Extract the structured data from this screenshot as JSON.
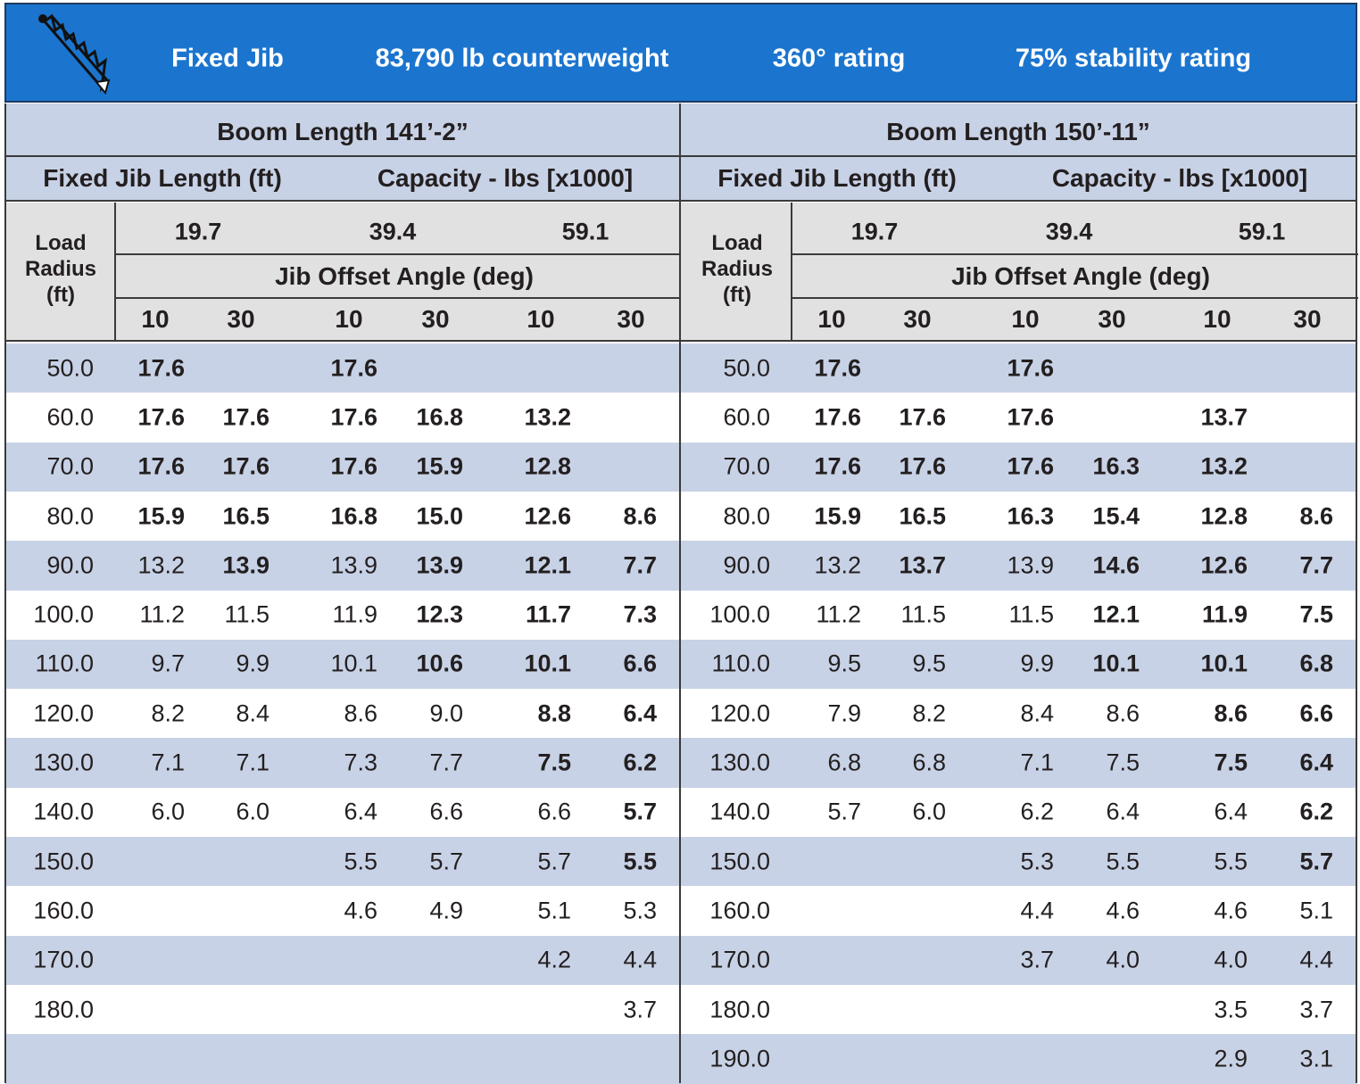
{
  "header": {
    "items": [
      "Fixed Jib",
      "83,790 lb counterweight",
      "360° rating",
      "75% stability rating"
    ]
  },
  "panels": [
    {
      "boom_length": "Boom Length 141’-2”",
      "jib_length_label": "Fixed Jib Length (ft)",
      "capacity_label": "Capacity - lbs [x1000]",
      "radius_label": "Load Radius (ft)",
      "jib_lengths": [
        "19.7",
        "39.4",
        "59.1"
      ],
      "offset_label": "Jib Offset Angle (deg)",
      "offsets": [
        "10",
        "30"
      ],
      "rows": [
        {
          "radius": "50.0",
          "cells": [
            {
              "text": "17.6",
              "bold": true
            },
            null,
            {
              "text": "17.6",
              "bold": true
            },
            null,
            null,
            null
          ]
        },
        {
          "radius": "60.0",
          "cells": [
            {
              "text": "17.6",
              "bold": true
            },
            {
              "text": "17.6",
              "bold": true
            },
            {
              "text": "17.6",
              "bold": true
            },
            {
              "text": "16.8",
              "bold": true
            },
            {
              "text": "13.2",
              "bold": true
            },
            null
          ]
        },
        {
          "radius": "70.0",
          "cells": [
            {
              "text": "17.6",
              "bold": true
            },
            {
              "text": "17.6",
              "bold": true
            },
            {
              "text": "17.6",
              "bold": true
            },
            {
              "text": "15.9",
              "bold": true
            },
            {
              "text": "12.8",
              "bold": true
            },
            null
          ]
        },
        {
          "radius": "80.0",
          "cells": [
            {
              "text": "15.9",
              "bold": true
            },
            {
              "text": "16.5",
              "bold": true
            },
            {
              "text": "16.8",
              "bold": true
            },
            {
              "text": "15.0",
              "bold": true
            },
            {
              "text": "12.6",
              "bold": true
            },
            {
              "text": "8.6",
              "bold": true
            }
          ]
        },
        {
          "radius": "90.0",
          "cells": [
            {
              "text": "13.2",
              "bold": false
            },
            {
              "text": "13.9",
              "bold": true
            },
            {
              "text": "13.9",
              "bold": false
            },
            {
              "text": "13.9",
              "bold": true
            },
            {
              "text": "12.1",
              "bold": true
            },
            {
              "text": "7.7",
              "bold": true
            }
          ]
        },
        {
          "radius": "100.0",
          "cells": [
            {
              "text": "11.2",
              "bold": false
            },
            {
              "text": "11.5",
              "bold": false
            },
            {
              "text": "11.9",
              "bold": false
            },
            {
              "text": "12.3",
              "bold": true
            },
            {
              "text": "11.7",
              "bold": true
            },
            {
              "text": "7.3",
              "bold": true
            }
          ]
        },
        {
          "radius": "110.0",
          "cells": [
            {
              "text": "9.7",
              "bold": false
            },
            {
              "text": "9.9",
              "bold": false
            },
            {
              "text": "10.1",
              "bold": false
            },
            {
              "text": "10.6",
              "bold": true
            },
            {
              "text": "10.1",
              "bold": true
            },
            {
              "text": "6.6",
              "bold": true
            }
          ]
        },
        {
          "radius": "120.0",
          "cells": [
            {
              "text": "8.2",
              "bold": false
            },
            {
              "text": "8.4",
              "bold": false
            },
            {
              "text": "8.6",
              "bold": false
            },
            {
              "text": "9.0",
              "bold": false
            },
            {
              "text": "8.8",
              "bold": true
            },
            {
              "text": "6.4",
              "bold": true
            }
          ]
        },
        {
          "radius": "130.0",
          "cells": [
            {
              "text": "7.1",
              "bold": false
            },
            {
              "text": "7.1",
              "bold": false
            },
            {
              "text": "7.3",
              "bold": false
            },
            {
              "text": "7.7",
              "bold": false
            },
            {
              "text": "7.5",
              "bold": true
            },
            {
              "text": "6.2",
              "bold": true
            }
          ]
        },
        {
          "radius": "140.0",
          "cells": [
            {
              "text": "6.0",
              "bold": false
            },
            {
              "text": "6.0",
              "bold": false
            },
            {
              "text": "6.4",
              "bold": false
            },
            {
              "text": "6.6",
              "bold": false
            },
            {
              "text": "6.6",
              "bold": false
            },
            {
              "text": "5.7",
              "bold": true
            }
          ]
        },
        {
          "radius": "150.0",
          "cells": [
            null,
            null,
            {
              "text": "5.5",
              "bold": false
            },
            {
              "text": "5.7",
              "bold": false
            },
            {
              "text": "5.7",
              "bold": false
            },
            {
              "text": "5.5",
              "bold": true
            }
          ]
        },
        {
          "radius": "160.0",
          "cells": [
            null,
            null,
            {
              "text": "4.6",
              "bold": false
            },
            {
              "text": "4.9",
              "bold": false
            },
            {
              "text": "5.1",
              "bold": false
            },
            {
              "text": "5.3",
              "bold": false
            }
          ]
        },
        {
          "radius": "170.0",
          "cells": [
            null,
            null,
            null,
            null,
            {
              "text": "4.2",
              "bold": false
            },
            {
              "text": "4.4",
              "bold": false
            }
          ]
        },
        {
          "radius": "180.0",
          "cells": [
            null,
            null,
            null,
            null,
            null,
            {
              "text": "3.7",
              "bold": false
            }
          ]
        },
        {
          "radius": null,
          "cells": [
            null,
            null,
            null,
            null,
            null,
            null
          ]
        }
      ]
    },
    {
      "boom_length": "Boom Length 150’-11”",
      "jib_length_label": "Fixed Jib Length (ft)",
      "capacity_label": "Capacity - lbs [x1000]",
      "radius_label": "Load Radius (ft)",
      "jib_lengths": [
        "19.7",
        "39.4",
        "59.1"
      ],
      "offset_label": "Jib Offset Angle (deg)",
      "offsets": [
        "10",
        "30"
      ],
      "rows": [
        {
          "radius": "50.0",
          "cells": [
            {
              "text": "17.6",
              "bold": true
            },
            null,
            {
              "text": "17.6",
              "bold": true
            },
            null,
            null,
            null
          ]
        },
        {
          "radius": "60.0",
          "cells": [
            {
              "text": "17.6",
              "bold": true
            },
            {
              "text": "17.6",
              "bold": true
            },
            {
              "text": "17.6",
              "bold": true
            },
            null,
            {
              "text": "13.7",
              "bold": true
            },
            null
          ]
        },
        {
          "radius": "70.0",
          "cells": [
            {
              "text": "17.6",
              "bold": true
            },
            {
              "text": "17.6",
              "bold": true
            },
            {
              "text": "17.6",
              "bold": true
            },
            {
              "text": "16.3",
              "bold": true
            },
            {
              "text": "13.2",
              "bold": true
            },
            null
          ]
        },
        {
          "radius": "80.0",
          "cells": [
            {
              "text": "15.9",
              "bold": true
            },
            {
              "text": "16.5",
              "bold": true
            },
            {
              "text": "16.3",
              "bold": true
            },
            {
              "text": "15.4",
              "bold": true
            },
            {
              "text": "12.8",
              "bold": true
            },
            {
              "text": "8.6",
              "bold": true
            }
          ]
        },
        {
          "radius": "90.0",
          "cells": [
            {
              "text": "13.2",
              "bold": false
            },
            {
              "text": "13.7",
              "bold": true
            },
            {
              "text": "13.9",
              "bold": false
            },
            {
              "text": "14.6",
              "bold": true
            },
            {
              "text": "12.6",
              "bold": true
            },
            {
              "text": "7.7",
              "bold": true
            }
          ]
        },
        {
          "radius": "100.0",
          "cells": [
            {
              "text": "11.2",
              "bold": false
            },
            {
              "text": "11.5",
              "bold": false
            },
            {
              "text": "11.5",
              "bold": false
            },
            {
              "text": "12.1",
              "bold": true
            },
            {
              "text": "11.9",
              "bold": true
            },
            {
              "text": "7.5",
              "bold": true
            }
          ]
        },
        {
          "radius": "110.0",
          "cells": [
            {
              "text": "9.5",
              "bold": false
            },
            {
              "text": "9.5",
              "bold": false
            },
            {
              "text": "9.9",
              "bold": false
            },
            {
              "text": "10.1",
              "bold": true
            },
            {
              "text": "10.1",
              "bold": true
            },
            {
              "text": "6.8",
              "bold": true
            }
          ]
        },
        {
          "radius": "120.0",
          "cells": [
            {
              "text": "7.9",
              "bold": false
            },
            {
              "text": "8.2",
              "bold": false
            },
            {
              "text": "8.4",
              "bold": false
            },
            {
              "text": "8.6",
              "bold": false
            },
            {
              "text": "8.6",
              "bold": true
            },
            {
              "text": "6.6",
              "bold": true
            }
          ]
        },
        {
          "radius": "130.0",
          "cells": [
            {
              "text": "6.8",
              "bold": false
            },
            {
              "text": "6.8",
              "bold": false
            },
            {
              "text": "7.1",
              "bold": false
            },
            {
              "text": "7.5",
              "bold": false
            },
            {
              "text": "7.5",
              "bold": true
            },
            {
              "text": "6.4",
              "bold": true
            }
          ]
        },
        {
          "radius": "140.0",
          "cells": [
            {
              "text": "5.7",
              "bold": false
            },
            {
              "text": "6.0",
              "bold": false
            },
            {
              "text": "6.2",
              "bold": false
            },
            {
              "text": "6.4",
              "bold": false
            },
            {
              "text": "6.4",
              "bold": false
            },
            {
              "text": "6.2",
              "bold": true
            }
          ]
        },
        {
          "radius": "150.0",
          "cells": [
            null,
            null,
            {
              "text": "5.3",
              "bold": false
            },
            {
              "text": "5.5",
              "bold": false
            },
            {
              "text": "5.5",
              "bold": false
            },
            {
              "text": "5.7",
              "bold": true
            }
          ]
        },
        {
          "radius": "160.0",
          "cells": [
            null,
            null,
            {
              "text": "4.4",
              "bold": false
            },
            {
              "text": "4.6",
              "bold": false
            },
            {
              "text": "4.6",
              "bold": false
            },
            {
              "text": "5.1",
              "bold": false
            }
          ]
        },
        {
          "radius": "170.0",
          "cells": [
            null,
            null,
            {
              "text": "3.7",
              "bold": false
            },
            {
              "text": "4.0",
              "bold": false
            },
            {
              "text": "4.0",
              "bold": false
            },
            {
              "text": "4.4",
              "bold": false
            }
          ]
        },
        {
          "radius": "180.0",
          "cells": [
            null,
            null,
            null,
            null,
            {
              "text": "3.5",
              "bold": false
            },
            {
              "text": "3.7",
              "bold": false
            }
          ]
        },
        {
          "radius": "190.0",
          "cells": [
            null,
            null,
            null,
            null,
            {
              "text": "2.9",
              "bold": false
            },
            {
              "text": "3.1",
              "bold": false
            }
          ]
        }
      ]
    }
  ]
}
